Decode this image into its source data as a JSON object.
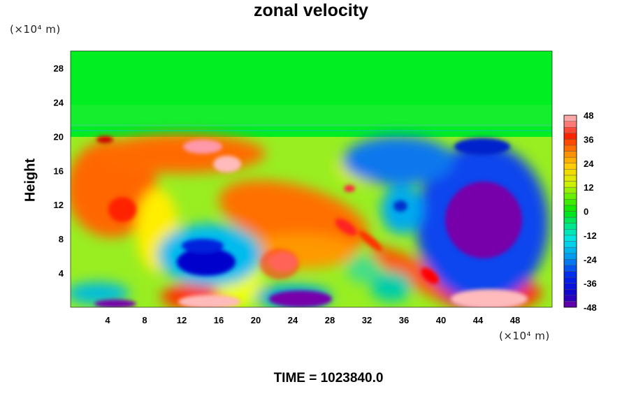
{
  "chart_data": {
    "type": "heatmap",
    "title": "zonal velocity",
    "ylabel": "Height",
    "xlabel": "",
    "x_unit": "(×10⁴ m)",
    "y_unit": "(×10⁴ m)",
    "xlim": [
      0,
      52
    ],
    "ylim": [
      0,
      30
    ],
    "x_ticks": [
      4,
      8,
      12,
      16,
      20,
      24,
      28,
      32,
      36,
      40,
      44,
      48
    ],
    "y_ticks": [
      4,
      8,
      12,
      16,
      20,
      24,
      28
    ],
    "colorbar": {
      "ticks": [
        48,
        36,
        24,
        12,
        0,
        -12,
        -24,
        -36,
        -48
      ],
      "range": [
        -48,
        48
      ],
      "levels": 32
    },
    "features": [
      {
        "x": 14,
        "y": 1,
        "value": 48
      },
      {
        "x": 44,
        "y": 1.5,
        "value": 48
      },
      {
        "x": 22.5,
        "y": 5,
        "value": 40
      },
      {
        "x": 16.5,
        "y": 17,
        "value": 44
      },
      {
        "x": 14,
        "y": 19,
        "value": 40
      },
      {
        "x": 6,
        "y": 14,
        "value": 30
      },
      {
        "x": 26,
        "y": 11,
        "value": 30
      },
      {
        "x": 29,
        "y": 9,
        "value": 34
      },
      {
        "x": 14,
        "y": 6,
        "value": -40
      },
      {
        "x": 43.5,
        "y": 10.5,
        "value": -48
      },
      {
        "x": 24,
        "y": 1.2,
        "value": -46
      },
      {
        "x": 5,
        "y": 0.5,
        "value": -44
      },
      {
        "x": 39,
        "y": 17.5,
        "value": -32
      },
      {
        "x": 35,
        "y": 12,
        "value": -30
      }
    ]
  },
  "time_label": "TIME = 1023840.0"
}
